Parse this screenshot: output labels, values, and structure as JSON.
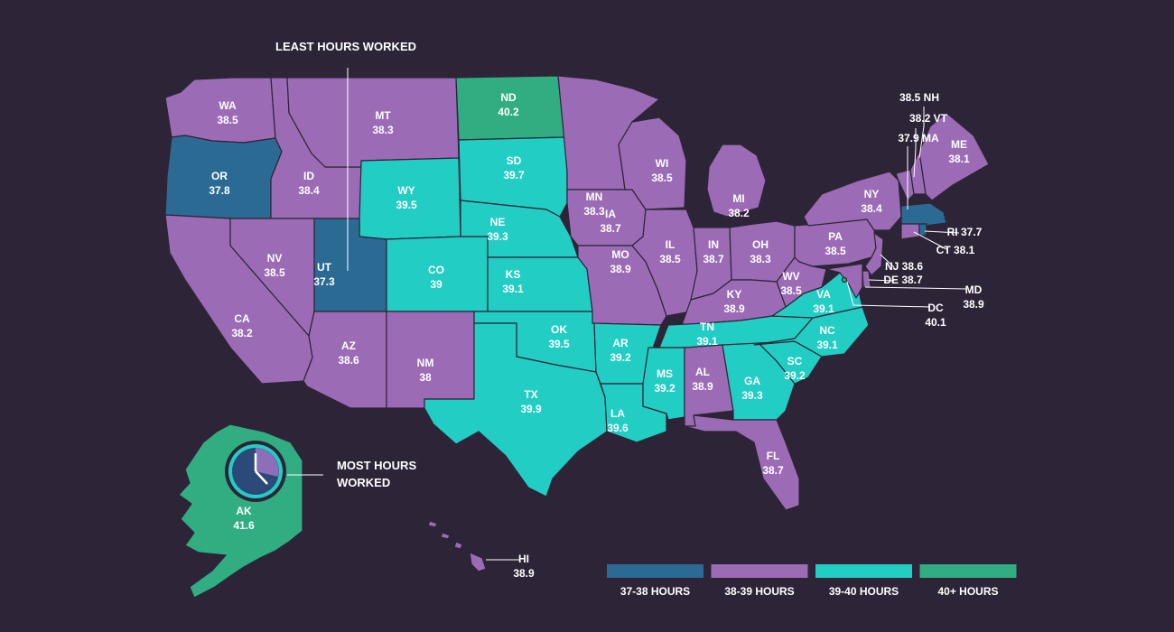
{
  "colors": {
    "background": "#2e2437",
    "h37_38": "#2b6b93",
    "h38_39": "#9b6cb5",
    "h39_40": "#22cdc4",
    "h40plus": "#31ad82",
    "border": "#2e2437"
  },
  "annotations": {
    "least": "LEAST HOURS WORKED",
    "most_line1": "MOST HOURS",
    "most_line2": "WORKED"
  },
  "states": {
    "WA": {
      "abbr": "WA",
      "hours": "38.5",
      "category": "h38_39"
    },
    "OR": {
      "abbr": "OR",
      "hours": "37.8",
      "category": "h37_38"
    },
    "CA": {
      "abbr": "CA",
      "hours": "38.2",
      "category": "h38_39"
    },
    "ID": {
      "abbr": "ID",
      "hours": "38.4",
      "category": "h38_39"
    },
    "NV": {
      "abbr": "NV",
      "hours": "38.5",
      "category": "h38_39"
    },
    "MT": {
      "abbr": "MT",
      "hours": "38.3",
      "category": "h38_39"
    },
    "WY": {
      "abbr": "WY",
      "hours": "39.5",
      "category": "h39_40"
    },
    "UT": {
      "abbr": "UT",
      "hours": "37.3",
      "category": "h37_38"
    },
    "AZ": {
      "abbr": "AZ",
      "hours": "38.6",
      "category": "h38_39"
    },
    "CO": {
      "abbr": "CO",
      "hours": "39",
      "category": "h39_40"
    },
    "NM": {
      "abbr": "NM",
      "hours": "38",
      "category": "h38_39"
    },
    "ND": {
      "abbr": "ND",
      "hours": "40.2",
      "category": "h40plus"
    },
    "SD": {
      "abbr": "SD",
      "hours": "39.7",
      "category": "h39_40"
    },
    "NE": {
      "abbr": "NE",
      "hours": "39.3",
      "category": "h39_40"
    },
    "KS": {
      "abbr": "KS",
      "hours": "39.1",
      "category": "h39_40"
    },
    "OK": {
      "abbr": "OK",
      "hours": "39.5",
      "category": "h39_40"
    },
    "TX": {
      "abbr": "TX",
      "hours": "39.9",
      "category": "h39_40"
    },
    "MN": {
      "abbr": "MN",
      "hours": "38.3",
      "category": "h38_39"
    },
    "IA": {
      "abbr": "IA",
      "hours": "38.7",
      "category": "h38_39"
    },
    "MO": {
      "abbr": "MO",
      "hours": "38.9",
      "category": "h38_39"
    },
    "AR": {
      "abbr": "AR",
      "hours": "39.2",
      "category": "h39_40"
    },
    "LA": {
      "abbr": "LA",
      "hours": "39.6",
      "category": "h39_40"
    },
    "WI": {
      "abbr": "WI",
      "hours": "38.5",
      "category": "h38_39"
    },
    "IL": {
      "abbr": "IL",
      "hours": "38.5",
      "category": "h38_39"
    },
    "MI": {
      "abbr": "MI",
      "hours": "38.2",
      "category": "h38_39"
    },
    "IN": {
      "abbr": "IN",
      "hours": "38.7",
      "category": "h38_39"
    },
    "OH": {
      "abbr": "OH",
      "hours": "38.3",
      "category": "h38_39"
    },
    "KY": {
      "abbr": "KY",
      "hours": "38.9",
      "category": "h38_39"
    },
    "TN": {
      "abbr": "TN",
      "hours": "39.1",
      "category": "h39_40"
    },
    "MS": {
      "abbr": "MS",
      "hours": "39.2",
      "category": "h39_40"
    },
    "AL": {
      "abbr": "AL",
      "hours": "38.9",
      "category": "h38_39"
    },
    "GA": {
      "abbr": "GA",
      "hours": "39.3",
      "category": "h39_40"
    },
    "FL": {
      "abbr": "FL",
      "hours": "38.7",
      "category": "h38_39"
    },
    "SC": {
      "abbr": "SC",
      "hours": "39.2",
      "category": "h39_40"
    },
    "NC": {
      "abbr": "NC",
      "hours": "39.1",
      "category": "h39_40"
    },
    "VA": {
      "abbr": "VA",
      "hours": "39.1",
      "category": "h39_40"
    },
    "WV": {
      "abbr": "WV",
      "hours": "38.5",
      "category": "h38_39"
    },
    "PA": {
      "abbr": "PA",
      "hours": "38.5",
      "category": "h38_39"
    },
    "NY": {
      "abbr": "NY",
      "hours": "38.4",
      "category": "h38_39"
    },
    "ME": {
      "abbr": "ME",
      "hours": "38.1",
      "category": "h38_39"
    },
    "NH": {
      "abbr": "NH",
      "hours": "38.5",
      "category": "h38_39"
    },
    "VT": {
      "abbr": "VT",
      "hours": "38.2",
      "category": "h38_39"
    },
    "MA": {
      "abbr": "MA",
      "hours": "37.9",
      "category": "h37_38"
    },
    "RI": {
      "abbr": "RI",
      "hours": "37.7",
      "category": "h37_38"
    },
    "CT": {
      "abbr": "CT",
      "hours": "38.1",
      "category": "h38_39"
    },
    "NJ": {
      "abbr": "NJ",
      "hours": "38.6",
      "category": "h38_39"
    },
    "DE": {
      "abbr": "DE",
      "hours": "38.7",
      "category": "h38_39"
    },
    "MD": {
      "abbr": "MD",
      "hours": "38.9",
      "category": "h38_39"
    },
    "DC": {
      "abbr": "DC",
      "hours": "40.1",
      "category": "h40plus"
    },
    "AK": {
      "abbr": "AK",
      "hours": "41.6",
      "category": "h40plus"
    },
    "HI": {
      "abbr": "HI",
      "hours": "38.9",
      "category": "h38_39"
    }
  },
  "legend": [
    {
      "label": "37-38 HOURS",
      "category": "h37_38"
    },
    {
      "label": "38-39 HOURS",
      "category": "h38_39"
    },
    {
      "label": "39-40 HOURS",
      "category": "h39_40"
    },
    {
      "label": "40+ HOURS",
      "category": "h40plus"
    }
  ],
  "icons": {
    "clock": "clock-icon"
  }
}
